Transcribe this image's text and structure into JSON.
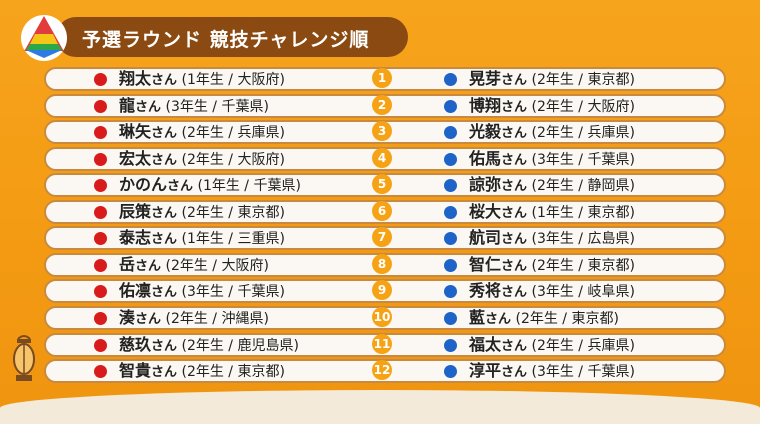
{
  "title": "予選ラウンド 競技チャレンジ順",
  "honorific": "さん",
  "rows": [
    {
      "num": "1",
      "left": {
        "name": "翔太",
        "info": "(1年生 / 大阪府)"
      },
      "right": {
        "name": "晃芽",
        "info": "(2年生 / 東京都)"
      }
    },
    {
      "num": "2",
      "left": {
        "name": "龍",
        "info": "(3年生 / 千葉県)"
      },
      "right": {
        "name": "博翔",
        "info": "(2年生 / 大阪府)"
      }
    },
    {
      "num": "3",
      "left": {
        "name": "琳矢",
        "info": "(2年生 / 兵庫県)"
      },
      "right": {
        "name": "光毅",
        "info": "(2年生 / 兵庫県)"
      }
    },
    {
      "num": "4",
      "left": {
        "name": "宏太",
        "info": "(2年生 / 大阪府)"
      },
      "right": {
        "name": "佑馬",
        "info": "(3年生 / 千葉県)"
      }
    },
    {
      "num": "5",
      "left": {
        "name": "かのん",
        "info": "(1年生 / 千葉県)"
      },
      "right": {
        "name": "諒弥",
        "info": "(2年生 / 静岡県)"
      }
    },
    {
      "num": "6",
      "left": {
        "name": "辰策",
        "info": "(2年生 / 東京都)"
      },
      "right": {
        "name": "桜大",
        "info": "(1年生 / 東京都)"
      }
    },
    {
      "num": "7",
      "left": {
        "name": "泰志",
        "info": "(1年生 / 三重県)"
      },
      "right": {
        "name": "航司",
        "info": "(3年生 / 広島県)"
      }
    },
    {
      "num": "8",
      "left": {
        "name": "岳",
        "info": "(2年生 / 大阪府)"
      },
      "right": {
        "name": "智仁",
        "info": "(2年生 / 東京都)"
      }
    },
    {
      "num": "9",
      "left": {
        "name": "佑凛",
        "info": "(3年生 / 千葉県)"
      },
      "right": {
        "name": "秀将",
        "info": "(3年生 / 岐阜県)"
      }
    },
    {
      "num": "10",
      "left": {
        "name": "湊",
        "info": "(2年生 / 沖縄県)"
      },
      "right": {
        "name": "藍",
        "info": "(2年生 / 東京都)"
      }
    },
    {
      "num": "11",
      "left": {
        "name": "慈玖",
        "info": "(2年生 / 鹿児島県)"
      },
      "right": {
        "name": "福太",
        "info": "(2年生 / 兵庫県)"
      }
    },
    {
      "num": "12",
      "left": {
        "name": "智貴",
        "info": "(2年生 / 東京都)"
      },
      "right": {
        "name": "淳平",
        "info": "(3年生 / 千葉県)"
      }
    }
  ],
  "colors": {
    "background": "#f5a01a",
    "title_bg": "#8a4a12",
    "red_dot": "#d81c1c",
    "blue_dot": "#1e63c8",
    "number_badge": "#f5a315",
    "row_bg": "#fbf8f3"
  }
}
